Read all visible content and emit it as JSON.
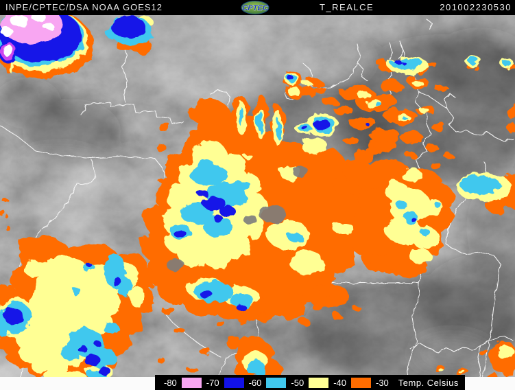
{
  "header": {
    "source": "INPE/CPTEC/DSA NOAA GOES12",
    "logo": "CPTEC",
    "product": "T_REALCE",
    "timestamp": "201002230530"
  },
  "legend": {
    "title": "Temp. Celsius",
    "items": [
      {
        "label": "-80",
        "swatch": "pink"
      },
      {
        "label": "-70",
        "swatch": "blue"
      },
      {
        "label": "-60",
        "swatch": "cyan"
      },
      {
        "label": "-50",
        "swatch": "yellow"
      },
      {
        "label": "-40",
        "swatch": "orange"
      },
      {
        "label": "-30"
      }
    ]
  },
  "palette": {
    "pink": "#f8a6f2",
    "blue": "#1212e8",
    "cyan": "#40c8ee",
    "yellow": "#ffff94",
    "orange": "#ff6c00",
    "magenta": "#cc44ee",
    "white_core": "#ffffff",
    "border": "#ffffff"
  }
}
